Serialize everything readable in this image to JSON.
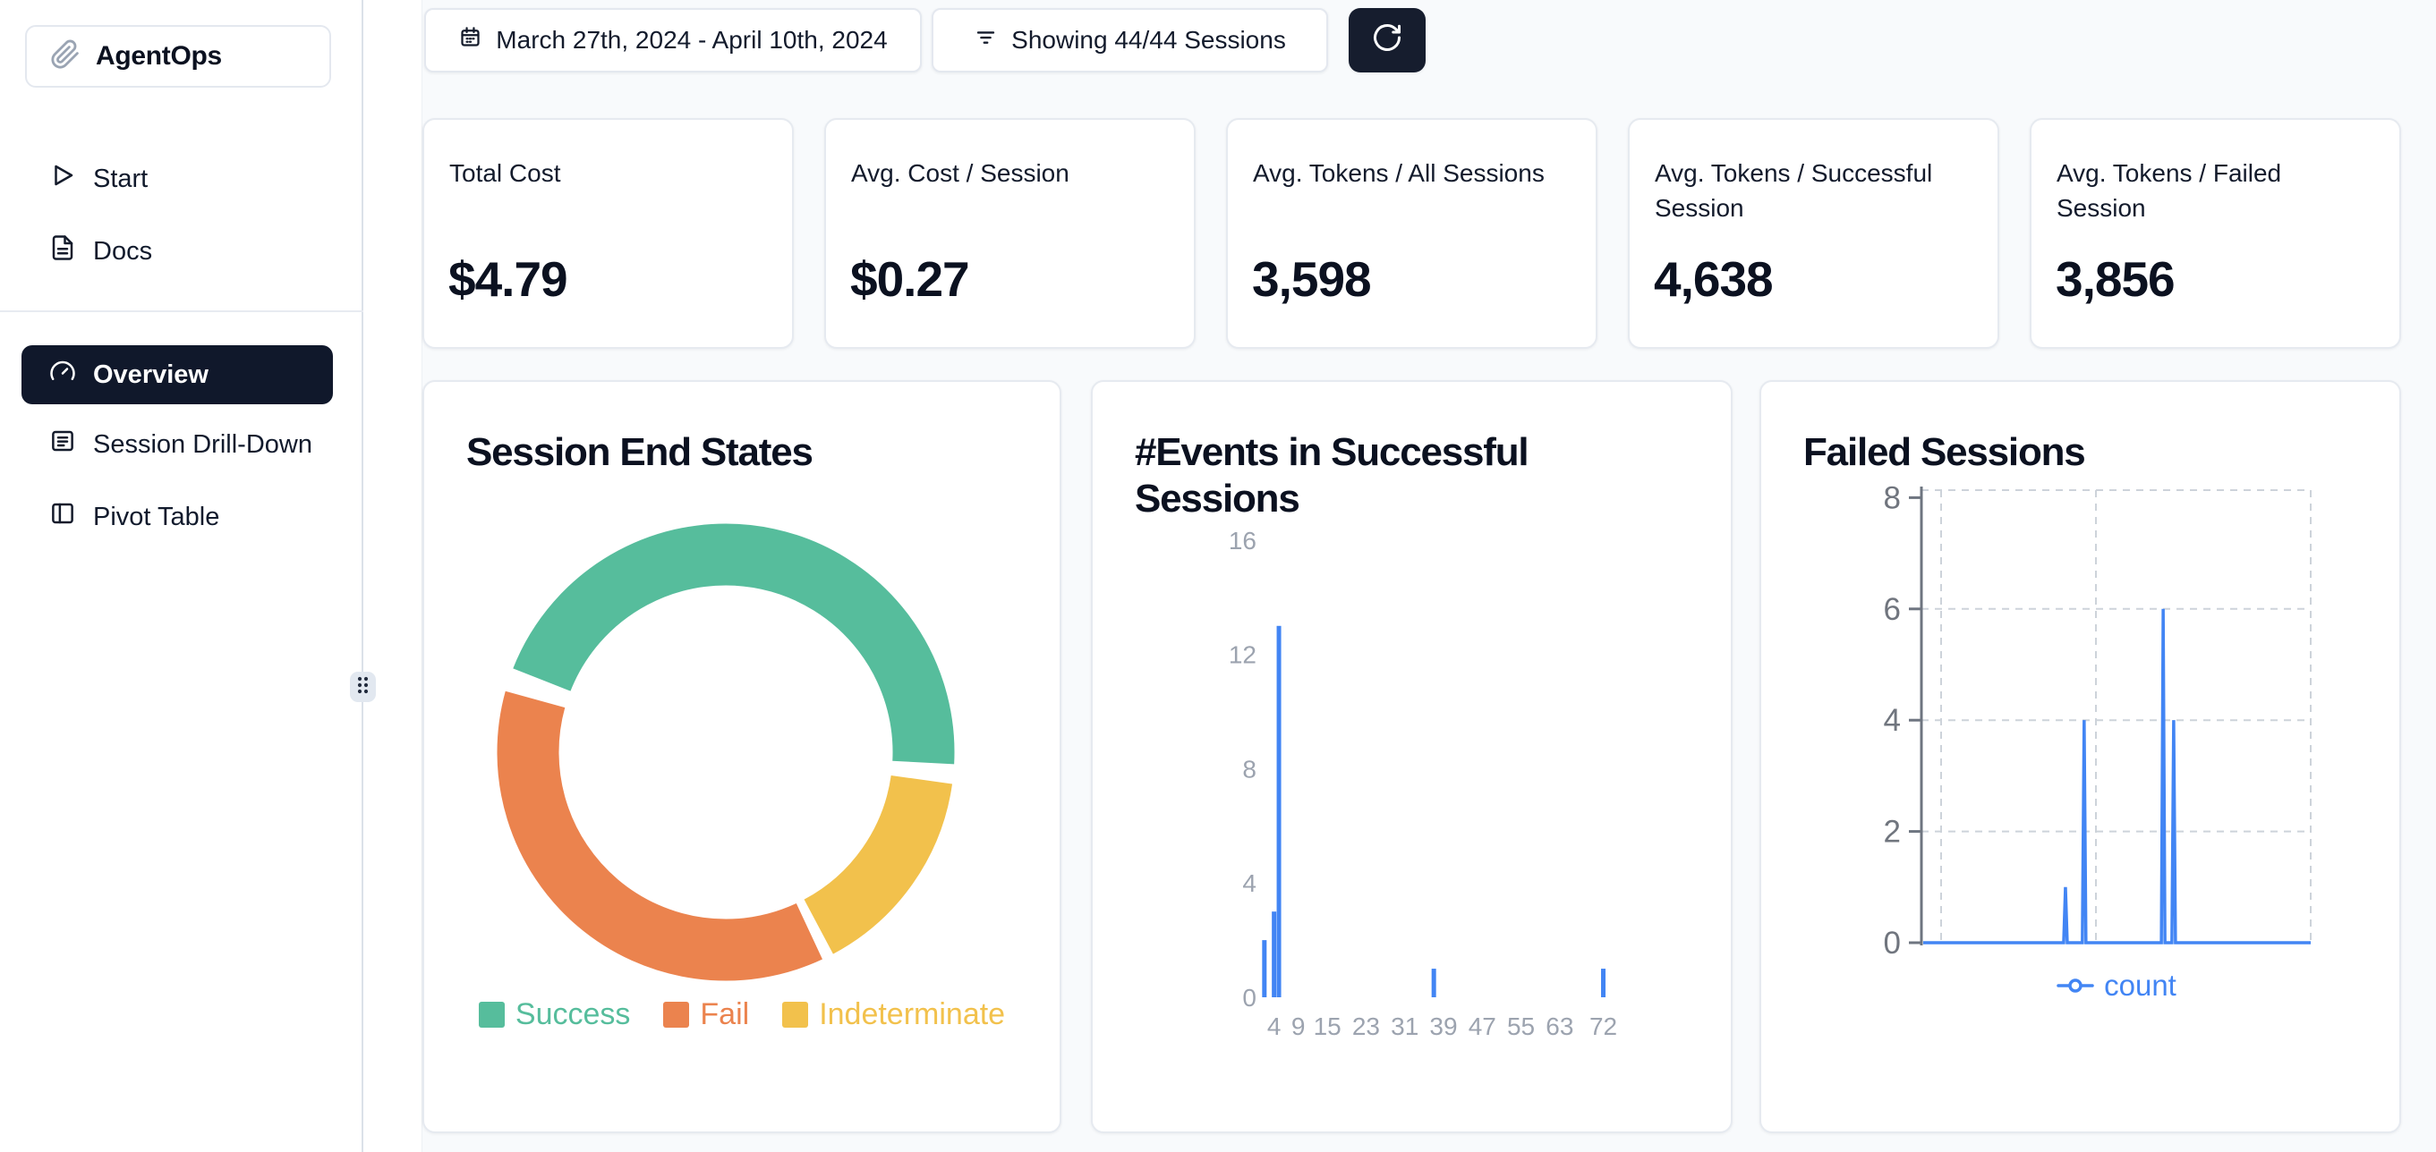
{
  "app": {
    "name": "AgentOps"
  },
  "sidebar": {
    "logo_text": "AgentOps",
    "primary_items": [
      {
        "label": "Start"
      },
      {
        "label": "Docs"
      }
    ],
    "secondary_items": [
      {
        "label": "Overview",
        "active": true
      },
      {
        "label": "Session Drill-Down",
        "active": false
      },
      {
        "label": "Pivot Table",
        "active": false
      }
    ]
  },
  "topbar": {
    "date_range": "March 27th, 2024 - April 10th, 2024",
    "sessions_filter": "Showing 44/44 Sessions"
  },
  "stats": [
    {
      "label": "Total Cost",
      "value": "$4.79"
    },
    {
      "label": "Avg. Cost / Session",
      "value": "$0.27"
    },
    {
      "label": "Avg. Tokens / All Sessions",
      "value": "3,598"
    },
    {
      "label": "Avg. Tokens / Successful Session",
      "value": "4,638"
    },
    {
      "label": "Avg. Tokens / Failed Session",
      "value": "3,856"
    }
  ],
  "colors": {
    "accent_blue": "#4285F4",
    "success_green": "#56BD9C",
    "fail_orange": "#EB834E",
    "indeterminate_yellow": "#F2C14C",
    "dark_navy": "#161D2E",
    "page_bg": "#F8FAFC",
    "card_border": "#E6EAF0",
    "axis_light_gray": "#9CA3AF",
    "axis_dark_gray": "#70757E",
    "grid_dash_gray": "#CDD3DA"
  },
  "chart_data": [
    {
      "type": "pie",
      "title": "Session End States",
      "legend_position": "bottom",
      "donut": true,
      "slices": [
        {
          "label": "Success",
          "color": "#56BD9C",
          "fraction": 0.467,
          "start_deg": 158.5,
          "end_deg": -3
        },
        {
          "label": "Fail",
          "color": "#EB834E",
          "fraction": 0.377,
          "start_deg": -65,
          "end_deg": -195.5
        },
        {
          "label": "Indeterminate",
          "color": "#F2C14C",
          "fraction": 0.156,
          "start_deg": -8,
          "end_deg": -62
        }
      ]
    },
    {
      "type": "bar",
      "title": "#Events in Successful Sessions",
      "xlabel": "",
      "ylabel": "",
      "x_ticks": [
        4,
        9,
        15,
        23,
        31,
        39,
        47,
        55,
        63,
        72
      ],
      "y_ticks": [
        0,
        4,
        8,
        12,
        16
      ],
      "xlim": [
        0,
        80
      ],
      "ylim": [
        0,
        16
      ],
      "grid": false,
      "bar_color": "#4285F4",
      "bars": [
        {
          "x": 2,
          "count": 2
        },
        {
          "x": 4,
          "count": 3
        },
        {
          "x": 5,
          "count": 13
        },
        {
          "x": 37,
          "count": 1
        },
        {
          "x": 72,
          "count": 1
        }
      ]
    },
    {
      "type": "line",
      "title": "Failed Sessions",
      "xlabel": "",
      "ylabel": "",
      "y_ticks": [
        0,
        2,
        4,
        6,
        8
      ],
      "ylim": [
        0,
        8
      ],
      "grid": "dashed",
      "legend_position": "bottom",
      "series": [
        {
          "name": "count",
          "color": "#4285F4"
        }
      ],
      "baseline_value": 0,
      "spikes": [
        {
          "x_frac": 0.37,
          "value": 1
        },
        {
          "x_frac": 0.418,
          "value": 4
        },
        {
          "x_frac": 0.621,
          "value": 6
        },
        {
          "x_frac": 0.648,
          "value": 4
        }
      ]
    }
  ]
}
